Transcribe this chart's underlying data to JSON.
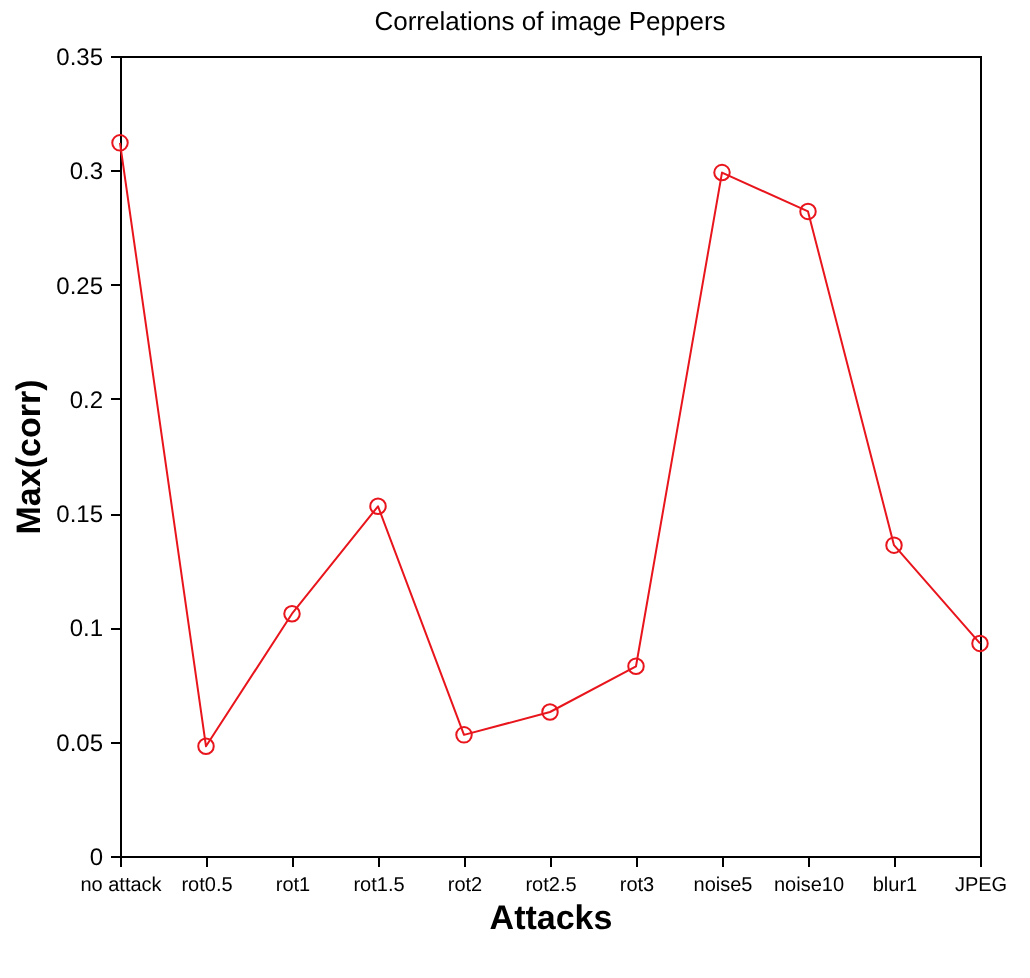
{
  "chart_data": {
    "type": "line",
    "title": "Correlations of image Peppers",
    "xlabel": "Attacks",
    "ylabel": "Max(corr)",
    "categories": [
      "no attack",
      "rot0.5",
      "rot1",
      "rot1.5",
      "rot2",
      "rot2.5",
      "rot3",
      "noise5",
      "noise10",
      "blur1",
      "JPEG"
    ],
    "series": [
      {
        "color": "#e8151c",
        "values": [
          0.312,
          0.048,
          0.106,
          0.153,
          0.053,
          0.063,
          0.083,
          0.299,
          0.282,
          0.136,
          0.093
        ]
      }
    ],
    "ylim": [
      0,
      0.35
    ],
    "yticks": [
      0,
      0.05,
      0.1,
      0.15,
      0.2,
      0.25,
      0.3,
      0.35
    ],
    "grid": false,
    "marker": "circle",
    "line_style": "solid"
  }
}
